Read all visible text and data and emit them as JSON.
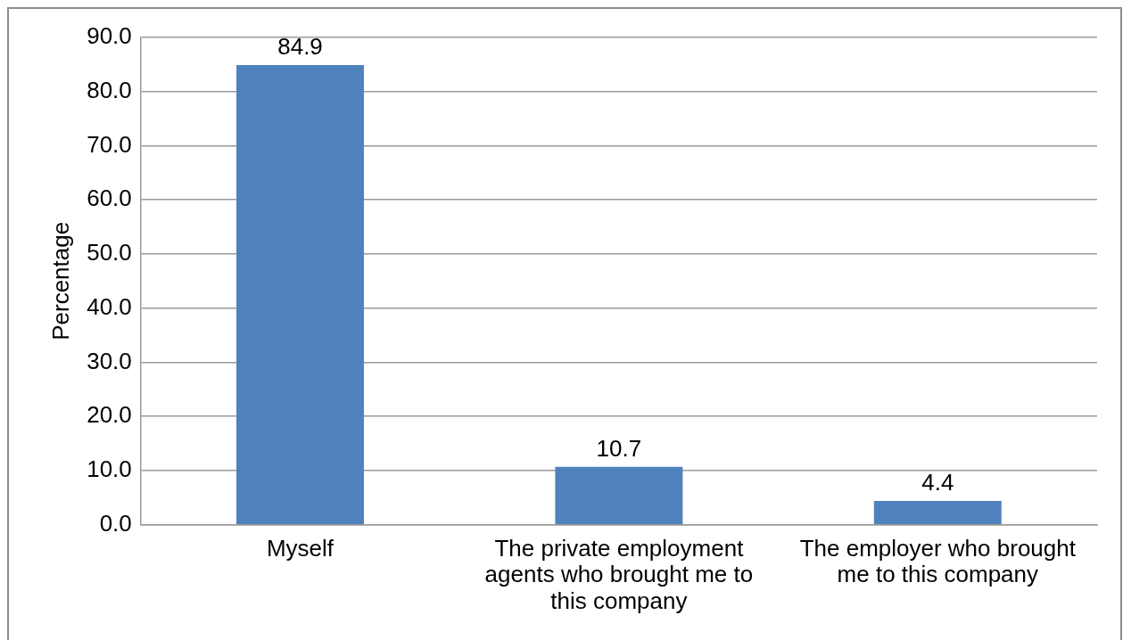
{
  "chart_data": {
    "type": "bar",
    "ylabel": "Percentage",
    "categories": [
      "Myself",
      "The private employment agents who brought me to this company",
      "The employer who brought me to this company"
    ],
    "values": [
      84.9,
      10.7,
      4.4
    ],
    "color": "#4f81bd",
    "ylim": [
      0,
      90
    ],
    "yticks": [
      {
        "value": 0,
        "label": "0.0"
      },
      {
        "value": 10,
        "label": "10.0"
      },
      {
        "value": 20,
        "label": "20.0"
      },
      {
        "value": 30,
        "label": "30.0"
      },
      {
        "value": 40,
        "label": "40.0"
      },
      {
        "value": 50,
        "label": "50.0"
      },
      {
        "value": 60,
        "label": "60.0"
      },
      {
        "value": 70,
        "label": "70.0"
      },
      {
        "value": 80,
        "label": "80.0"
      },
      {
        "value": 90,
        "label": "90.0"
      }
    ],
    "grid": "y",
    "legend": false,
    "data_labels": true
  }
}
